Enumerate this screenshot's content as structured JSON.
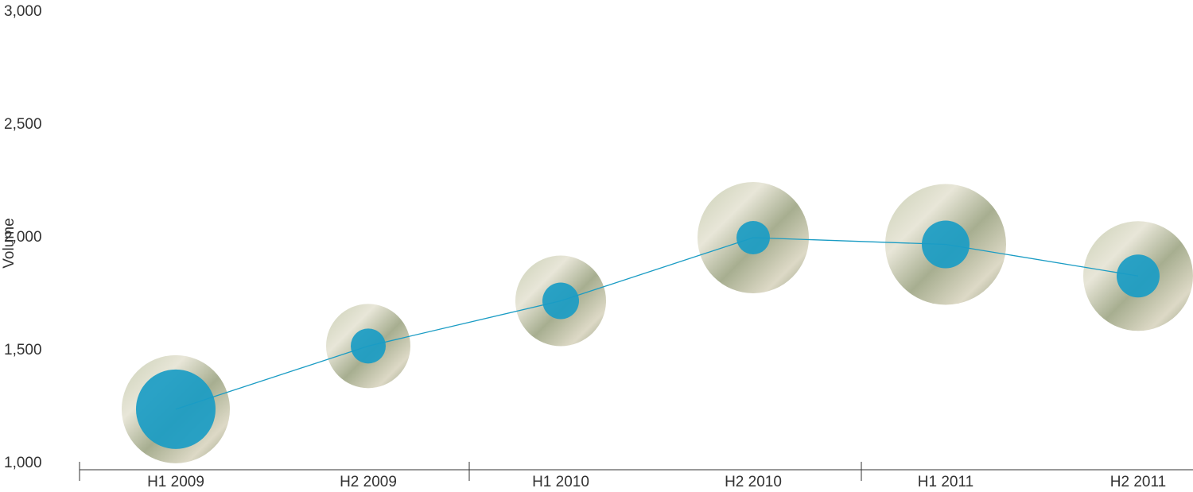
{
  "chart_data": {
    "type": "bubble",
    "y_label": "Volume",
    "categories": [
      "H1 2009",
      "H2 2009",
      "H1 2010",
      "H2 2010",
      "H1 2011",
      "H2 2011"
    ],
    "values": [
      1240,
      1520,
      1720,
      2000,
      1970,
      1830
    ],
    "sizes": [
      50,
      22,
      23,
      21,
      30,
      27
    ],
    "outer_sizes": [
      68,
      53,
      57,
      70,
      76,
      69
    ],
    "color": "#1a9cc4",
    "ylim": [
      1000,
      3000
    ],
    "yticks": [
      {
        "value": 1000,
        "label": "1,000"
      },
      {
        "value": 1500,
        "label": "1,500"
      },
      {
        "value": 2000,
        "label": "2,000"
      },
      {
        "value": 2500,
        "label": "2,500"
      },
      {
        "value": 3000,
        "label": "3,000"
      }
    ],
    "grid": false
  }
}
